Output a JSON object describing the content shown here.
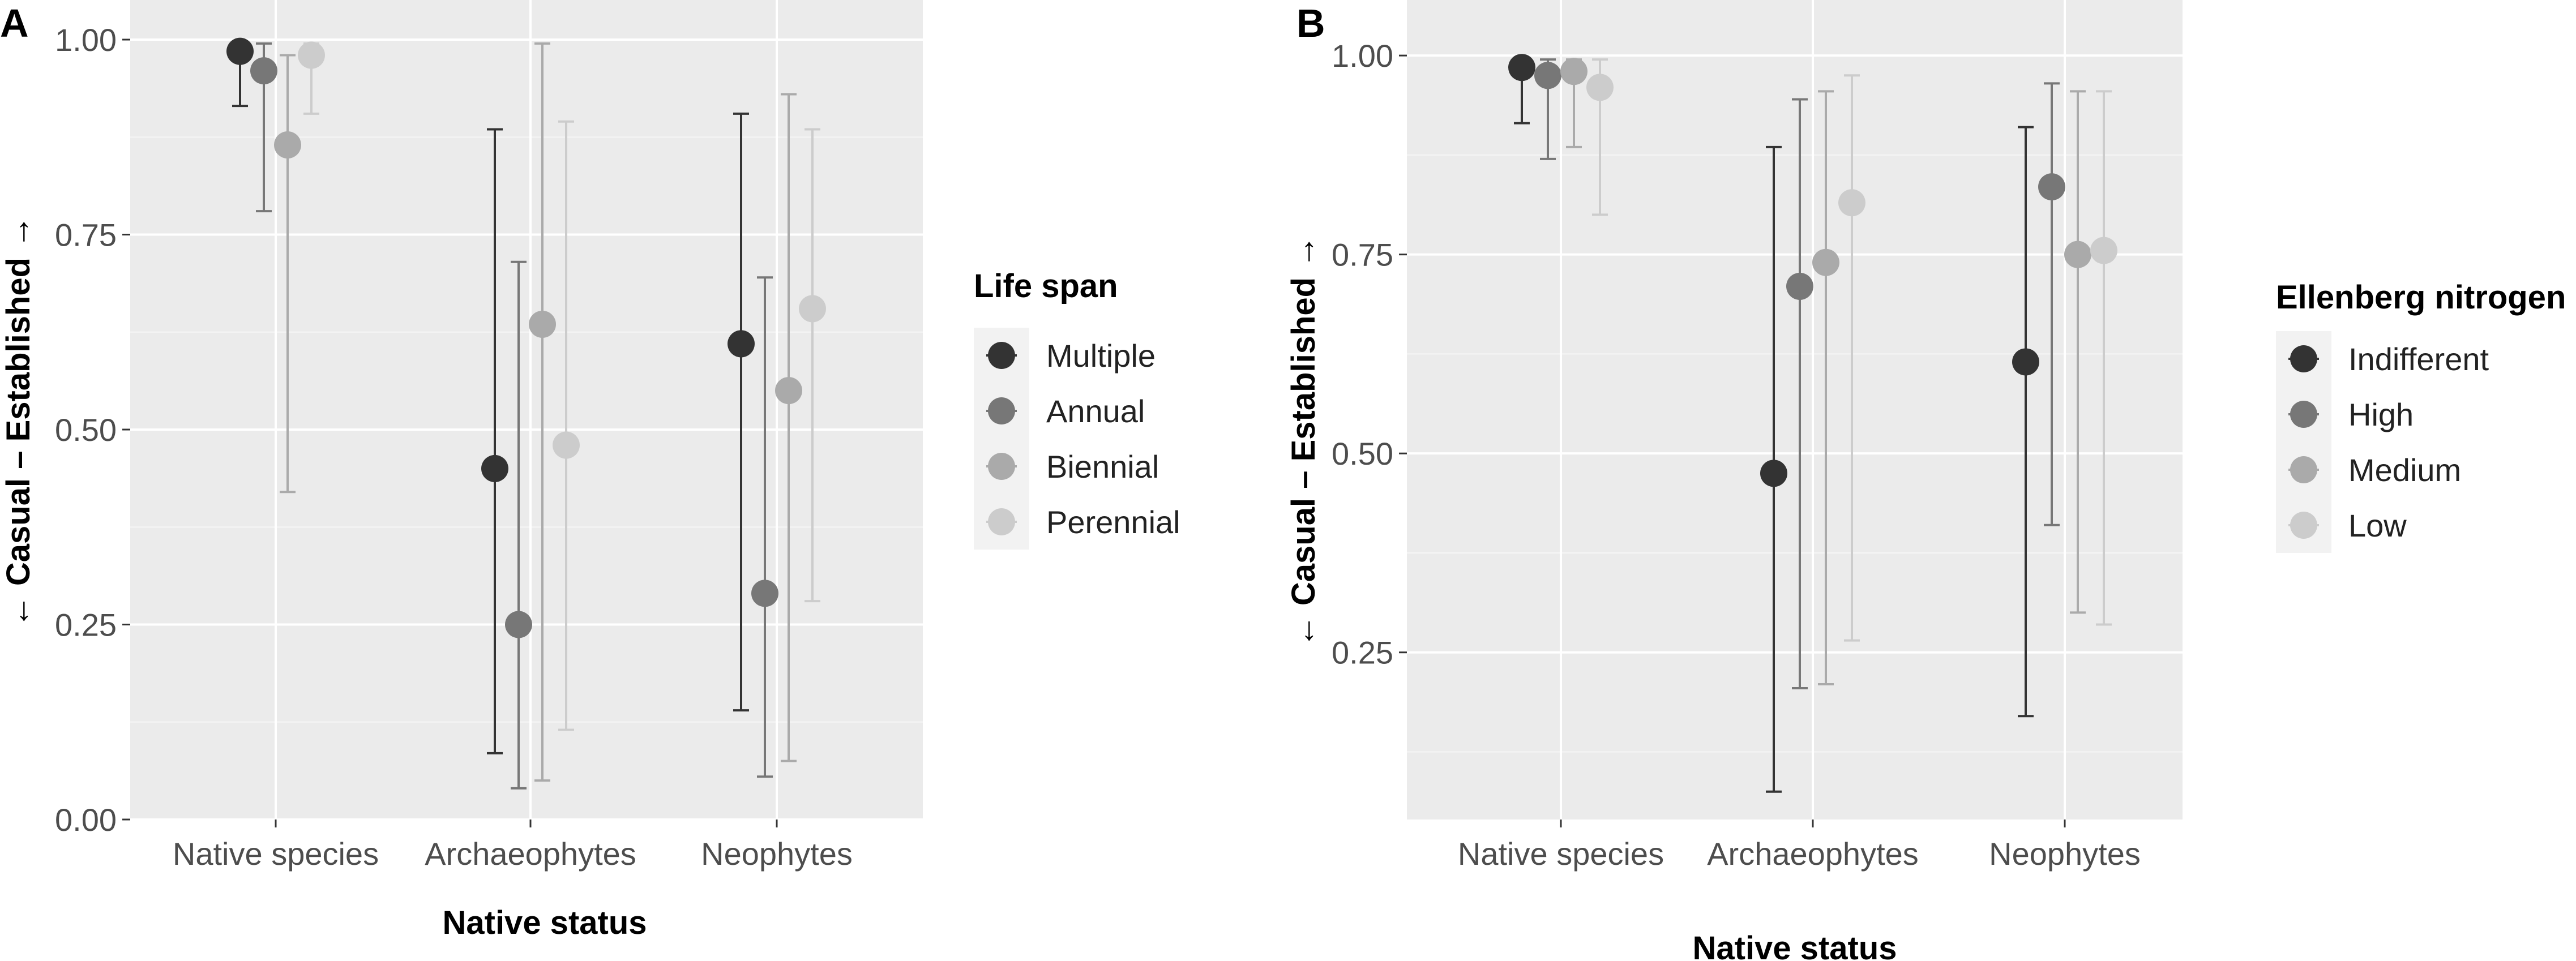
{
  "panels": [
    {
      "panel_label": "A",
      "legend_title": "Life span"
    },
    {
      "panel_label": "B",
      "legend_title": "Ellenberg nitrogen"
    }
  ],
  "chart_data": [
    {
      "type": "scatter",
      "subtype": "point-with-error-bars",
      "panel": "A",
      "title": "",
      "xlabel": "Native status",
      "ylabel": "← Casual – Established →",
      "categories": [
        "Native species",
        "Archaeophytes",
        "Neophytes"
      ],
      "ylim": [
        0,
        1.0
      ],
      "yticks": [
        0.0,
        0.25,
        0.5,
        0.75,
        1.0
      ],
      "ytick_labels": [
        "0.00",
        "0.25",
        "0.50",
        "0.75",
        "1.00"
      ],
      "legend_title": "Life span",
      "legend_position": "right",
      "series": [
        {
          "name": "Multiple",
          "color": "#333333",
          "values": [
            0.985,
            0.45,
            0.61
          ],
          "lower": [
            0.915,
            0.085,
            0.14
          ],
          "upper": [
            0.995,
            0.885,
            0.905
          ]
        },
        {
          "name": "Annual",
          "color": "#777777",
          "values": [
            0.96,
            0.25,
            0.29
          ],
          "lower": [
            0.78,
            0.04,
            0.055
          ],
          "upper": [
            0.995,
            0.715,
            0.695
          ]
        },
        {
          "name": "Biennial",
          "color": "#aaaaaa",
          "values": [
            0.865,
            0.635,
            0.55
          ],
          "lower": [
            0.42,
            0.05,
            0.075
          ],
          "upper": [
            0.98,
            0.995,
            0.93
          ]
        },
        {
          "name": "Perennial",
          "color": "#cccccc",
          "values": [
            0.98,
            0.48,
            0.655
          ],
          "lower": [
            0.905,
            0.115,
            0.28
          ],
          "upper": [
            0.995,
            0.895,
            0.885
          ]
        }
      ]
    },
    {
      "type": "scatter",
      "subtype": "point-with-error-bars",
      "panel": "B",
      "title": "",
      "xlabel": "Native status",
      "ylabel": "← Casual – Established →",
      "categories": [
        "Native species",
        "Archaeophytes",
        "Neophytes"
      ],
      "ylim": [
        0.04,
        1.02
      ],
      "yticks": [
        0.25,
        0.5,
        0.75,
        1.0
      ],
      "ytick_labels": [
        "0.25",
        "0.50",
        "0.75",
        "1.00"
      ],
      "legend_title": "Ellenberg nitrogen",
      "legend_position": "right",
      "series": [
        {
          "name": "Indifferent",
          "color": "#333333",
          "values": [
            0.985,
            0.475,
            0.615
          ],
          "lower": [
            0.915,
            0.075,
            0.17
          ],
          "upper": [
            0.995,
            0.885,
            0.91
          ]
        },
        {
          "name": "High",
          "color": "#777777",
          "values": [
            0.975,
            0.71,
            0.835
          ],
          "lower": [
            0.87,
            0.205,
            0.41
          ],
          "upper": [
            0.995,
            0.945,
            0.965
          ]
        },
        {
          "name": "Medium",
          "color": "#aaaaaa",
          "values": [
            0.98,
            0.74,
            0.75
          ],
          "lower": [
            0.885,
            0.21,
            0.3
          ],
          "upper": [
            0.995,
            0.955,
            0.955
          ]
        },
        {
          "name": "Low",
          "color": "#cccccc",
          "values": [
            0.96,
            0.815,
            0.755
          ],
          "lower": [
            0.8,
            0.265,
            0.285
          ],
          "upper": [
            0.995,
            0.975,
            0.955
          ]
        }
      ]
    }
  ]
}
